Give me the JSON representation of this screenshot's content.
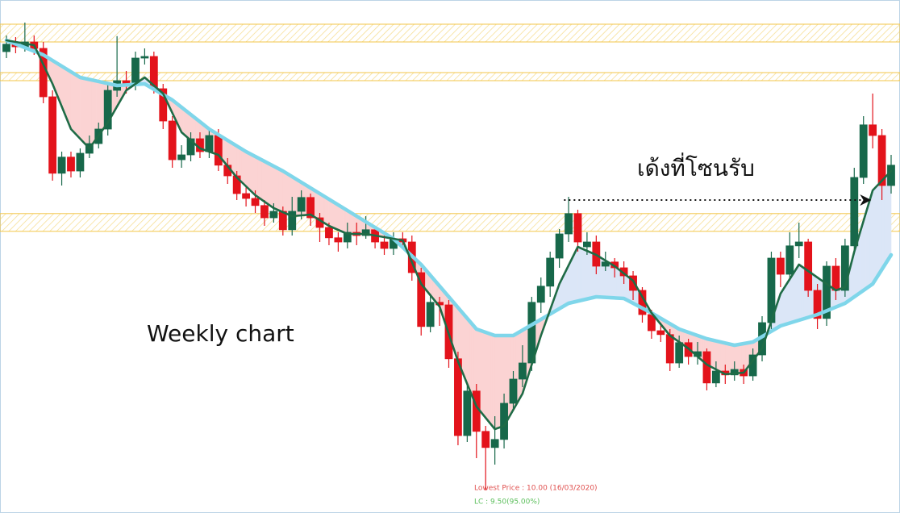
{
  "chart_data": {
    "type": "candlestick",
    "ylim": [
      9.3,
      25.2
    ],
    "up_color": "#17684a",
    "down_color": "#e3131b",
    "open": [
      23.6,
      23.83,
      23.75,
      23.9,
      23.7,
      22.2,
      19.83,
      20.33,
      19.9,
      20.45,
      20.75,
      21.2,
      22.4,
      22.7,
      22.58,
      23.4,
      23.45,
      22.45,
      21.45,
      20.25,
      20.4,
      20.9,
      20.5,
      21.0,
      20.08,
      19.75,
      19.2,
      19.05,
      18.83,
      18.45,
      18.65,
      18.08,
      18.65,
      19.08,
      18.45,
      18.15,
      17.83,
      17.7,
      18.0,
      17.9,
      18.08,
      17.7,
      17.5,
      17.8,
      17.7,
      16.75,
      15.08,
      15.83,
      15.75,
      14.08,
      11.7,
      13.08,
      11.83,
      11.33,
      11.58,
      12.7,
      13.45,
      13.95,
      15.83,
      16.33,
      17.2,
      17.95,
      18.58,
      17.55,
      17.7,
      16.95,
      17.08,
      16.9,
      16.65,
      16.2,
      15.45,
      14.95,
      14.83,
      13.95,
      14.58,
      14.15,
      14.3,
      13.33,
      13.7,
      13.58,
      13.75,
      13.55,
      14.2,
      15.2,
      17.2,
      16.7,
      17.58,
      17.7,
      16.2,
      15.33,
      16.95,
      16.2,
      17.58,
      19.7,
      21.33,
      21.0,
      19.45
    ],
    "high": [
      24.1,
      24.05,
      24.5,
      24.1,
      23.9,
      22.4,
      20.5,
      20.5,
      20.6,
      21.0,
      21.4,
      22.6,
      24.08,
      23.0,
      23.6,
      23.7,
      23.6,
      22.6,
      21.6,
      20.7,
      21.1,
      21.1,
      21.2,
      21.2,
      20.3,
      19.9,
      19.4,
      19.3,
      19.0,
      18.9,
      18.8,
      19.1,
      19.3,
      19.2,
      18.6,
      18.3,
      18.0,
      18.3,
      18.3,
      18.5,
      18.2,
      17.9,
      18.0,
      18.0,
      17.9,
      16.9,
      16.1,
      16.0,
      15.9,
      14.3,
      13.3,
      13.3,
      12.0,
      12.3,
      13.0,
      13.7,
      14.5,
      16.0,
      16.6,
      17.4,
      18.1,
      19.1,
      18.7,
      18.0,
      17.9,
      17.4,
      17.2,
      17.1,
      16.8,
      16.3,
      15.6,
      15.2,
      15.0,
      14.8,
      14.7,
      14.6,
      14.4,
      14.0,
      13.9,
      14.0,
      13.9,
      14.4,
      15.4,
      17.4,
      17.4,
      18.0,
      18.3,
      17.8,
      16.4,
      17.1,
      17.2,
      17.8,
      20.0,
      21.6,
      22.3,
      21.2,
      20.4
    ],
    "low": [
      23.4,
      23.55,
      23.6,
      23.5,
      22.0,
      19.6,
      19.45,
      19.7,
      19.7,
      20.3,
      20.6,
      21.0,
      22.2,
      22.3,
      22.4,
      23.2,
      22.3,
      21.2,
      20.0,
      20.0,
      20.2,
      20.3,
      20.3,
      19.9,
      19.5,
      19.0,
      18.8,
      18.6,
      18.2,
      18.3,
      17.9,
      17.9,
      18.4,
      18.2,
      17.7,
      17.6,
      17.4,
      17.5,
      17.6,
      17.8,
      17.5,
      17.3,
      17.3,
      17.5,
      16.5,
      14.8,
      14.9,
      15.1,
      13.8,
      11.4,
      11.5,
      11.0,
      10.0,
      10.8,
      11.3,
      12.5,
      13.2,
      13.7,
      15.5,
      16.0,
      16.9,
      17.7,
      17.4,
      17.3,
      16.7,
      16.8,
      16.6,
      16.4,
      15.9,
      15.2,
      14.7,
      14.6,
      13.7,
      13.8,
      13.9,
      13.9,
      13.1,
      13.2,
      13.3,
      13.4,
      13.3,
      13.4,
      14.0,
      15.0,
      16.3,
      16.5,
      17.2,
      16.0,
      15.0,
      15.1,
      15.9,
      16.0,
      17.4,
      19.5,
      20.6,
      19.0,
      19.2
    ],
    "close": [
      23.83,
      23.75,
      23.9,
      23.7,
      22.2,
      19.83,
      20.33,
      19.9,
      20.45,
      20.75,
      21.2,
      22.4,
      22.7,
      22.58,
      23.4,
      23.45,
      22.45,
      21.45,
      20.25,
      20.4,
      20.9,
      20.5,
      21.0,
      20.08,
      19.75,
      19.2,
      19.05,
      18.83,
      18.45,
      18.65,
      18.08,
      18.65,
      19.08,
      18.45,
      18.15,
      17.83,
      17.7,
      18.0,
      17.9,
      18.08,
      17.7,
      17.5,
      17.8,
      17.7,
      16.75,
      15.08,
      15.83,
      15.75,
      14.08,
      11.7,
      13.08,
      11.83,
      11.33,
      11.58,
      12.7,
      13.45,
      13.95,
      15.83,
      16.33,
      17.2,
      17.95,
      18.58,
      17.7,
      17.7,
      16.95,
      17.08,
      16.9,
      16.65,
      16.2,
      15.45,
      14.95,
      14.83,
      13.95,
      14.58,
      14.15,
      14.3,
      13.33,
      13.7,
      13.58,
      13.75,
      13.55,
      14.2,
      15.2,
      17.2,
      16.7,
      17.58,
      17.7,
      16.2,
      15.33,
      16.95,
      16.2,
      17.58,
      19.7,
      21.33,
      21.0,
      19.45,
      20.08
    ],
    "lines": [
      {
        "color": "#1f6b46",
        "width": 2.6,
        "x": [
          0,
          3,
          5,
          7,
          9,
          11,
          13,
          15,
          17,
          19,
          21,
          23,
          25,
          27,
          29,
          31,
          33,
          35,
          37,
          39,
          41,
          43,
          45,
          47,
          49,
          51,
          53,
          54,
          56,
          58,
          60,
          62,
          64,
          66,
          68,
          70,
          72,
          74,
          76,
          78,
          80,
          82,
          84,
          86,
          88,
          90,
          91,
          92,
          94,
          96
        ],
        "values": [
          23.95,
          23.8,
          22.6,
          21.2,
          20.6,
          21.4,
          22.4,
          22.8,
          22.3,
          21.1,
          20.6,
          20.4,
          19.7,
          19.15,
          18.75,
          18.5,
          18.55,
          18.2,
          17.95,
          17.95,
          17.85,
          17.75,
          16.4,
          15.7,
          14.0,
          12.6,
          11.9,
          12.0,
          13.0,
          14.8,
          16.4,
          17.55,
          17.3,
          16.95,
          16.5,
          15.5,
          14.8,
          14.4,
          13.9,
          13.6,
          13.65,
          14.4,
          16.1,
          17.0,
          16.6,
          16.2,
          16.3,
          17.4,
          19.3,
          19.9
        ]
      },
      {
        "color": "#7fd6ea",
        "width": 4.5,
        "x": [
          0,
          4,
          8,
          12,
          15,
          18,
          22,
          26,
          30,
          34,
          38,
          42,
          45,
          48,
          51,
          53,
          55,
          58,
          61,
          64,
          67,
          70,
          73,
          76,
          79,
          81,
          84,
          88,
          91,
          94,
          96
        ],
        "values": [
          23.95,
          23.5,
          22.8,
          22.55,
          22.6,
          22.1,
          21.2,
          20.5,
          19.9,
          19.2,
          18.5,
          17.8,
          17.0,
          16.0,
          15.0,
          14.8,
          14.8,
          15.3,
          15.8,
          16.0,
          15.95,
          15.5,
          15.0,
          14.7,
          14.5,
          14.6,
          15.1,
          15.45,
          15.8,
          16.4,
          17.3
        ]
      }
    ],
    "cloud_colors": [
      "#fbd3d3",
      "#dbe6f7"
    ],
    "zones": [
      [
        24.45,
        23.9
      ],
      [
        22.95,
        22.7
      ],
      [
        18.58,
        18.03
      ]
    ],
    "zone_color": "#f3c64a",
    "arrow": {
      "y": 19.0,
      "from": 60.5,
      "to": 93.6
    },
    "annotations": [
      "Weekly chart",
      "เด้งที่โซนรับ",
      "Lowest Price : 10.00 (16/03/2020)",
      "LC : 9.50(95.00%)"
    ]
  }
}
